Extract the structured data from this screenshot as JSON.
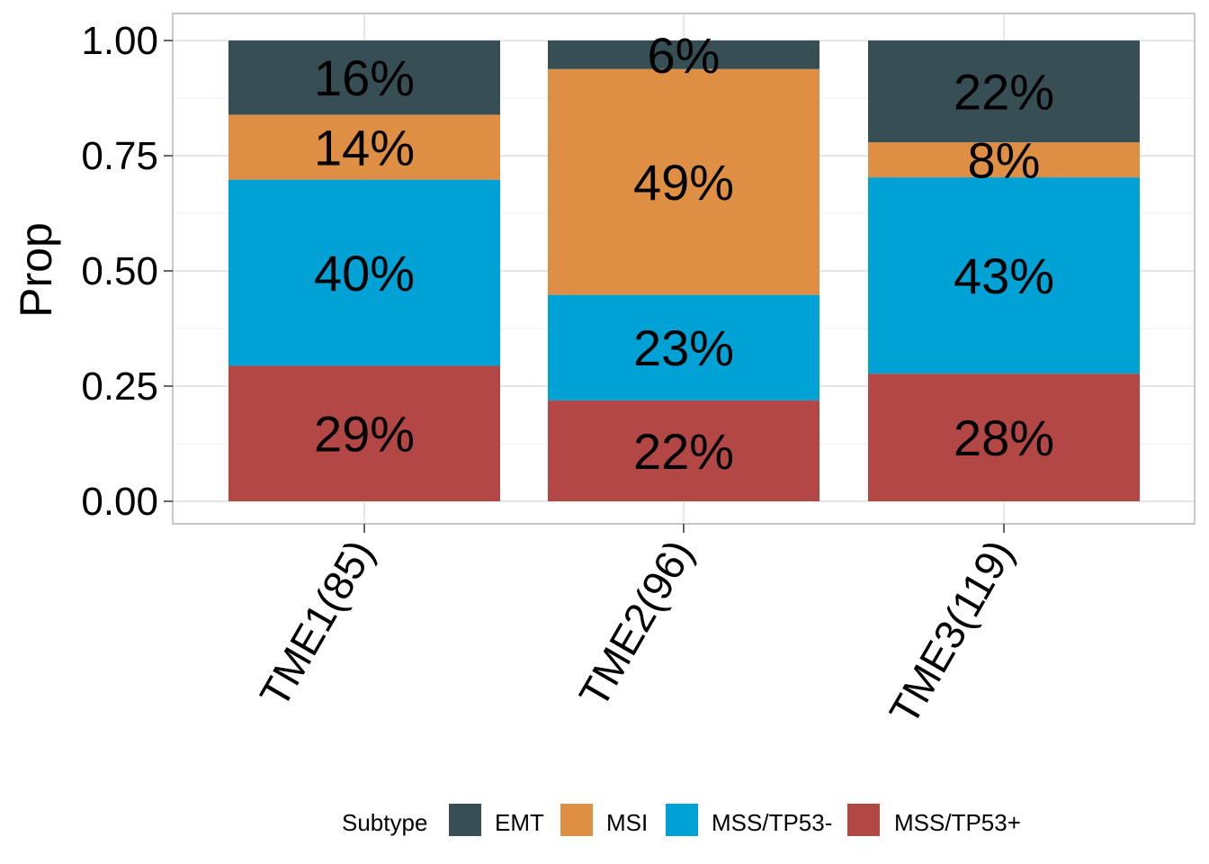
{
  "chart_data": {
    "type": "bar",
    "stacked": true,
    "categories": [
      "TME1(85)",
      "TME2(96)",
      "TME3(119)"
    ],
    "ylabel": "Prop",
    "xlabel": "",
    "ylim": [
      0,
      1
    ],
    "yticks": [
      "0.00",
      "0.25",
      "0.50",
      "0.75",
      "1.00"
    ],
    "ytick_values": [
      0,
      0.25,
      0.5,
      0.75,
      1.0
    ],
    "grid": true,
    "legend": {
      "title": "Subtype",
      "position": "bottom"
    },
    "series": [
      {
        "name": "MSS/TP53+",
        "color": "#B24745",
        "values": [
          0.294,
          0.219,
          0.277
        ],
        "labels": [
          "29%",
          "22%",
          "28%"
        ]
      },
      {
        "name": "MSS/TP53-",
        "color": "#00A1D5",
        "values": [
          0.404,
          0.229,
          0.426
        ],
        "labels": [
          "40%",
          "23%",
          "43%"
        ]
      },
      {
        "name": "MSI",
        "color": "#DF8F44",
        "values": [
          0.141,
          0.49,
          0.076
        ],
        "labels": [
          "14%",
          "49%",
          "8%"
        ]
      },
      {
        "name": "EMT",
        "color": "#374E55",
        "values": [
          0.161,
          0.062,
          0.221
        ],
        "labels": [
          "16%",
          "6%",
          "22%"
        ]
      }
    ],
    "legend_order": [
      "EMT",
      "MSI",
      "MSS/TP53-",
      "MSS/TP53+"
    ]
  }
}
